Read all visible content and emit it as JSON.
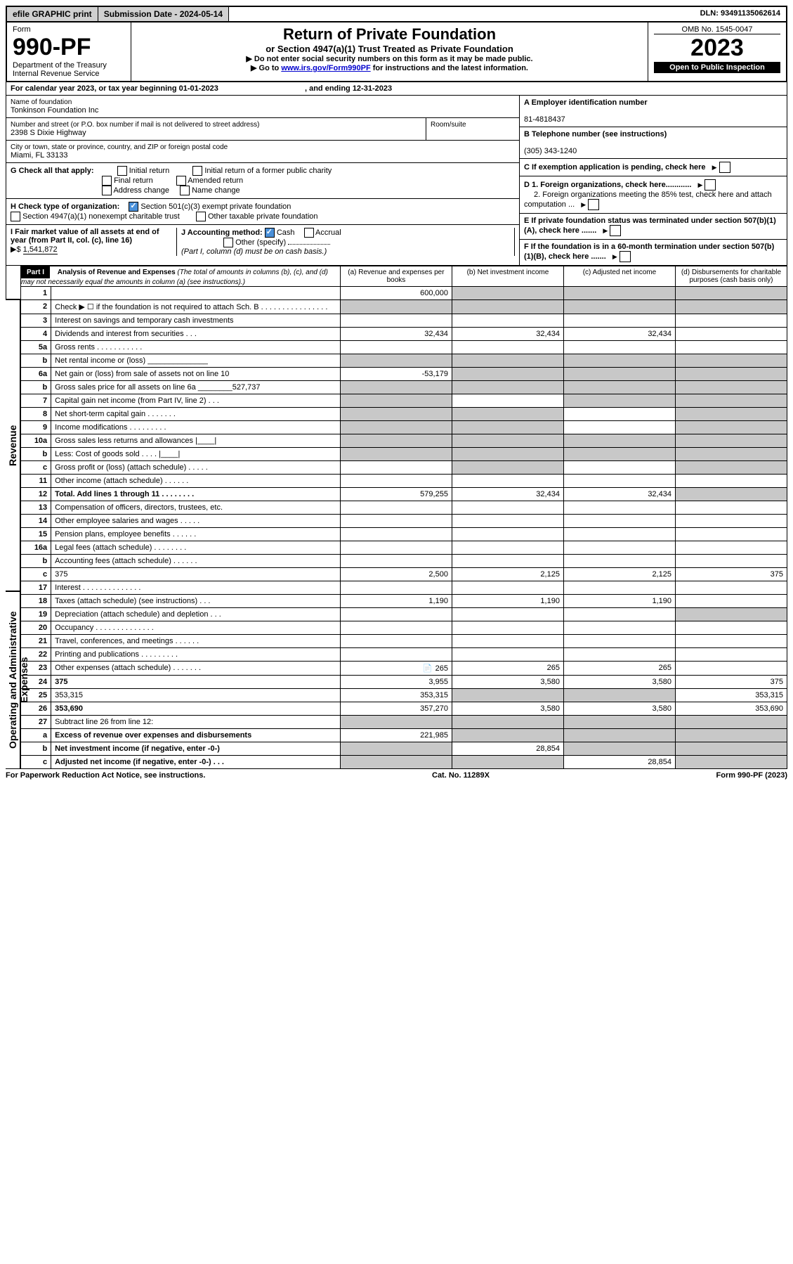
{
  "topbar": {
    "efile": "efile GRAPHIC print",
    "submission_label": "Submission Date - 2024-05-14",
    "dln": "DLN: 93491135062614"
  },
  "header": {
    "form_word": "Form",
    "form_number": "990-PF",
    "dept": "Department of the Treasury",
    "irs": "Internal Revenue Service",
    "title": "Return of Private Foundation",
    "subtitle": "or Section 4947(a)(1) Trust Treated as Private Foundation",
    "note1": "▶ Do not enter social security numbers on this form as it may be made public.",
    "note2_pre": "▶ Go to ",
    "note2_link": "www.irs.gov/Form990PF",
    "note2_post": " for instructions and the latest information.",
    "omb": "OMB No. 1545-0047",
    "year": "2023",
    "open": "Open to Public Inspection"
  },
  "cal": {
    "line": "For calendar year 2023, or tax year beginning 01-01-2023",
    "ending": ", and ending 12-31-2023"
  },
  "info": {
    "name_label": "Name of foundation",
    "name": "Tonkinson Foundation Inc",
    "addr_label": "Number and street (or P.O. box number if mail is not delivered to street address)",
    "addr": "2398 S Dixie Highway",
    "room_label": "Room/suite",
    "city_label": "City or town, state or province, country, and ZIP or foreign postal code",
    "city": "Miami, FL  33133",
    "a_label": "A Employer identification number",
    "a_val": "81-4818437",
    "b_label": "B Telephone number (see instructions)",
    "b_val": "(305) 343-1240",
    "c_label": "C If exemption application is pending, check here"
  },
  "g": {
    "label": "G Check all that apply:",
    "opt1": "Initial return",
    "opt2": "Initial return of a former public charity",
    "opt3": "Final return",
    "opt4": "Amended return",
    "opt5": "Address change",
    "opt6": "Name change"
  },
  "h": {
    "label": "H Check type of organization:",
    "opt1": "Section 501(c)(3) exempt private foundation",
    "opt2": "Section 4947(a)(1) nonexempt charitable trust",
    "opt3": "Other taxable private foundation"
  },
  "d": {
    "d1": "D 1. Foreign organizations, check here............",
    "d2": "2. Foreign organizations meeting the 85% test, check here and attach computation ..."
  },
  "e": {
    "label": "E  If private foundation status was terminated under section 507(b)(1)(A), check here ......."
  },
  "i": {
    "label": "I Fair market value of all assets at end of year (from Part II, col. (c), line 16)",
    "arrow": "▶$",
    "val": "1,541,872"
  },
  "j": {
    "label": "J Accounting method:",
    "cash": "Cash",
    "accrual": "Accrual",
    "other": "Other (specify)",
    "note": "(Part I, column (d) must be on cash basis.)"
  },
  "f": {
    "label": "F  If the foundation is in a 60-month termination under section 507(b)(1)(B), check here ......."
  },
  "part1": {
    "label": "Part I",
    "title": "Analysis of Revenue and Expenses",
    "title_note": "(The total of amounts in columns (b), (c), and (d) may not necessarily equal the amounts in column (a) (see instructions).)",
    "col_a": "(a)   Revenue and expenses per books",
    "col_b": "(b)   Net investment income",
    "col_c": "(c)   Adjusted net income",
    "col_d": "(d)   Disbursements for charitable purposes (cash basis only)"
  },
  "sidelabels": {
    "revenue": "Revenue",
    "expenses": "Operating and Administrative Expenses"
  },
  "rows": [
    {
      "n": "1",
      "d": "",
      "a": "600,000",
      "b": "",
      "c": "",
      "gray": [
        "b",
        "c",
        "d"
      ]
    },
    {
      "n": "2",
      "d": "Check ▶ ☐ if the foundation is not required to attach Sch. B  .  .  .  .  .  .  .  .  .  .  .  .  .  .  .  .",
      "gray": [
        "a",
        "b",
        "c",
        "d"
      ]
    },
    {
      "n": "3",
      "d": "Interest on savings and temporary cash investments"
    },
    {
      "n": "4",
      "d": "Dividends and interest from securities   .   .   .",
      "a": "32,434",
      "b": "32,434",
      "c": "32,434"
    },
    {
      "n": "5a",
      "d": "Gross rents   .   .   .   .   .   .   .   .   .   .   ."
    },
    {
      "n": "b",
      "d": "Net rental income or (loss)  ______________",
      "gray": [
        "a",
        "b",
        "c",
        "d"
      ]
    },
    {
      "n": "6a",
      "d": "Net gain or (loss) from sale of assets not on line 10",
      "a": "-53,179",
      "gray": [
        "b",
        "c",
        "d"
      ]
    },
    {
      "n": "b",
      "d": "Gross sales price for all assets on line 6a ________527,737",
      "gray": [
        "a",
        "b",
        "c",
        "d"
      ]
    },
    {
      "n": "7",
      "d": "Capital gain net income (from Part IV, line 2)   .   .   .",
      "gray": [
        "a",
        "c",
        "d"
      ]
    },
    {
      "n": "8",
      "d": "Net short-term capital gain  .   .   .   .   .   .   .",
      "gray": [
        "a",
        "b",
        "d"
      ]
    },
    {
      "n": "9",
      "d": "Income modifications  .   .   .   .   .   .   .   .   .",
      "gray": [
        "a",
        "b",
        "d"
      ]
    },
    {
      "n": "10a",
      "d": "Gross sales less returns and allowances   |____|",
      "gray": [
        "a",
        "b",
        "c",
        "d"
      ]
    },
    {
      "n": "b",
      "d": "Less: Cost of goods sold   .   .   .   .   |____|",
      "gray": [
        "a",
        "b",
        "c",
        "d"
      ]
    },
    {
      "n": "c",
      "d": "Gross profit or (loss) (attach schedule)   .   .   .   .   .",
      "gray": [
        "b",
        "d"
      ]
    },
    {
      "n": "11",
      "d": "Other income (attach schedule)   .   .   .   .   .   ."
    },
    {
      "n": "12",
      "d": "Total. Add lines 1 through 11   .   .   .   .   .   .   .   .",
      "a": "579,255",
      "b": "32,434",
      "c": "32,434",
      "bold": true,
      "gray": [
        "d"
      ]
    },
    {
      "n": "13",
      "d": "Compensation of officers, directors, trustees, etc."
    },
    {
      "n": "14",
      "d": "Other employee salaries and wages   .   .   .   .   ."
    },
    {
      "n": "15",
      "d": "Pension plans, employee benefits  .   .   .   .   .   ."
    },
    {
      "n": "16a",
      "d": "Legal fees (attach schedule) .   .   .   .   .   .   .   ."
    },
    {
      "n": "b",
      "d": "Accounting fees (attach schedule)  .   .   .   .   .   ."
    },
    {
      "n": "c",
      "d": "375",
      "a": "2,500",
      "b": "2,125",
      "c": "2,125"
    },
    {
      "n": "17",
      "d": "Interest  .   .   .   .   .   .   .   .   .   .   .   .   .   ."
    },
    {
      "n": "18",
      "d": "Taxes (attach schedule) (see instructions)    .   .   .",
      "a": "1,190",
      "b": "1,190",
      "c": "1,190"
    },
    {
      "n": "19",
      "d": "Depreciation (attach schedule) and depletion   .   .   .",
      "gray": [
        "d"
      ]
    },
    {
      "n": "20",
      "d": "Occupancy .   .   .   .   .   .   .   .   .   .   .   .   .   ."
    },
    {
      "n": "21",
      "d": "Travel, conferences, and meetings  .   .   .   .   .   ."
    },
    {
      "n": "22",
      "d": "Printing and publications  .   .   .   .   .   .   .   .   ."
    },
    {
      "n": "23",
      "d": "Other expenses (attach schedule) .   .   .   .   .   .   .",
      "a": "265",
      "b": "265",
      "c": "265",
      "icon": true
    },
    {
      "n": "24",
      "d": "375",
      "a": "3,955",
      "b": "3,580",
      "c": "3,580",
      "bold": true
    },
    {
      "n": "25",
      "d": "353,315",
      "a": "353,315",
      "gray": [
        "b",
        "c"
      ]
    },
    {
      "n": "26",
      "d": "353,690",
      "a": "357,270",
      "b": "3,580",
      "c": "3,580",
      "bold": true
    },
    {
      "n": "27",
      "d": "Subtract line 26 from line 12:",
      "gray": [
        "a",
        "b",
        "c",
        "d"
      ]
    },
    {
      "n": "a",
      "d": "Excess of revenue over expenses and disbursements",
      "a": "221,985",
      "bold": true,
      "gray": [
        "b",
        "c",
        "d"
      ]
    },
    {
      "n": "b",
      "d": "Net investment income (if negative, enter -0-)",
      "b": "28,854",
      "bold": true,
      "gray": [
        "a",
        "c",
        "d"
      ]
    },
    {
      "n": "c",
      "d": "Adjusted net income (if negative, enter -0-)   .   .   .",
      "c": "28,854",
      "bold": true,
      "gray": [
        "a",
        "b",
        "d"
      ]
    }
  ],
  "footer": {
    "left": "For Paperwork Reduction Act Notice, see instructions.",
    "mid": "Cat. No. 11289X",
    "right": "Form 990-PF (2023)"
  }
}
